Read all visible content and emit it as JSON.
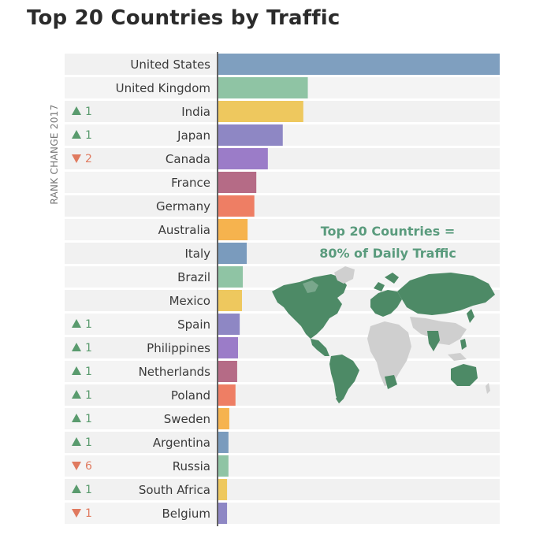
{
  "title": "Top 20 Countries by Traffic",
  "colors": {
    "up": "#5a9b6e",
    "down": "#e07a5f",
    "map_highlight": "#4d8a66",
    "map_other": "#cfcfcf",
    "annotation": "#5a9b7d",
    "row_bg": "#f3f3f3"
  },
  "chart_data": {
    "type": "bar",
    "orientation": "horizontal",
    "title": "Top 20 Countries by Traffic",
    "rank_change_label": "RANK CHANGE 2017",
    "annotation_lines": [
      "Top 20 Countries =",
      "80% of Daily Traffic"
    ],
    "categories": [
      "United States",
      "United Kingdom",
      "India",
      "Japan",
      "Canada",
      "France",
      "Germany",
      "Australia",
      "Italy",
      "Brazil",
      "Mexico",
      "Spain",
      "Philippines",
      "Netherlands",
      "Poland",
      "Sweden",
      "Argentina",
      "Russia",
      "South Africa",
      "Belgium"
    ],
    "values": [
      100,
      31.8,
      30.2,
      22.9,
      17.6,
      13.5,
      12.8,
      10.4,
      10.1,
      8.7,
      8.4,
      7.6,
      7.0,
      6.7,
      6.1,
      3.9,
      3.6,
      3.6,
      3.1,
      3.1
    ],
    "rank_change": [
      {
        "dir": "",
        "num": ""
      },
      {
        "dir": "",
        "num": ""
      },
      {
        "dir": "up",
        "num": "1"
      },
      {
        "dir": "up",
        "num": "1"
      },
      {
        "dir": "down",
        "num": "2"
      },
      {
        "dir": "",
        "num": ""
      },
      {
        "dir": "",
        "num": ""
      },
      {
        "dir": "",
        "num": ""
      },
      {
        "dir": "",
        "num": ""
      },
      {
        "dir": "",
        "num": ""
      },
      {
        "dir": "",
        "num": ""
      },
      {
        "dir": "up",
        "num": "1"
      },
      {
        "dir": "up",
        "num": "1"
      },
      {
        "dir": "up",
        "num": "1"
      },
      {
        "dir": "up",
        "num": "1"
      },
      {
        "dir": "up",
        "num": "1"
      },
      {
        "dir": "up",
        "num": "1"
      },
      {
        "dir": "down",
        "num": "6"
      },
      {
        "dir": "up",
        "num": "1"
      },
      {
        "dir": "down",
        "num": "1"
      }
    ],
    "bar_colors": [
      "#7f9fbf",
      "#8fc4a4",
      "#eec85e",
      "#8e87c4",
      "#9b7cc8",
      "#b56b86",
      "#ee7e64",
      "#f6b34e",
      "#7a9bbd",
      "#8fc4a4",
      "#eec85e",
      "#8e87c4",
      "#9b7cc8",
      "#b56b86",
      "#ee7e64",
      "#f6b34e",
      "#7a9bbd",
      "#8fc4a4",
      "#eec85e",
      "#8e87c4"
    ],
    "xlim": [
      0,
      100
    ],
    "grid": false,
    "legend": "none"
  }
}
